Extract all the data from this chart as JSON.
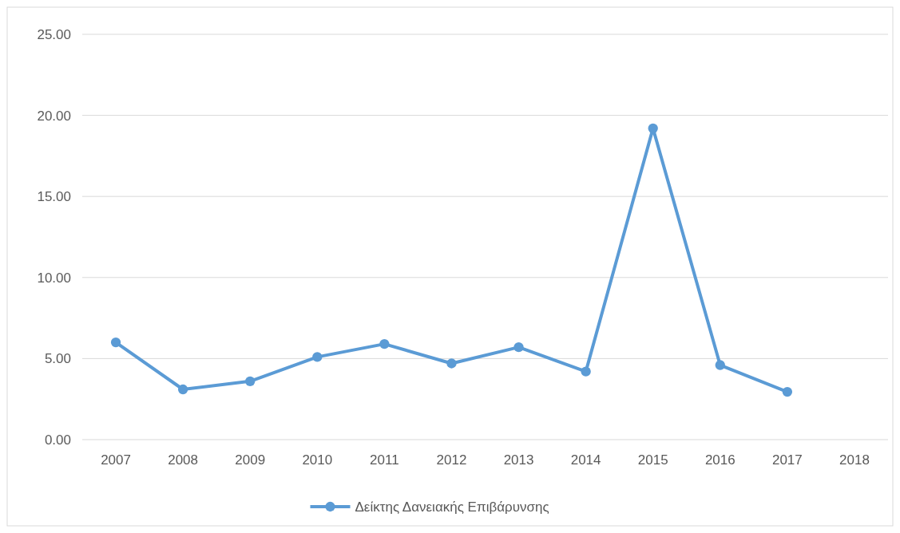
{
  "chart_data": {
    "type": "line",
    "categories": [
      "2007",
      "2008",
      "2009",
      "2010",
      "2011",
      "2012",
      "2013",
      "2014",
      "2015",
      "2016",
      "2017",
      "2018"
    ],
    "series": [
      {
        "name": "Δείκτης Δανειακής Επιβάρυνσης",
        "color": "#5b9bd5",
        "values": [
          6.0,
          3.1,
          3.6,
          5.1,
          5.9,
          4.7,
          5.7,
          4.2,
          19.2,
          4.6,
          2.95,
          null
        ]
      }
    ],
    "ylim": [
      0,
      25
    ],
    "yticks": [
      {
        "value": 0,
        "label": "0.00"
      },
      {
        "value": 5,
        "label": "5.00"
      },
      {
        "value": 10,
        "label": "10.00"
      },
      {
        "value": 15,
        "label": "15.00"
      },
      {
        "value": 20,
        "label": "20.00"
      },
      {
        "value": 25,
        "label": "25.00"
      }
    ],
    "grid": "y",
    "legend": "bottom",
    "marker": "circle",
    "line_style": "solid"
  }
}
